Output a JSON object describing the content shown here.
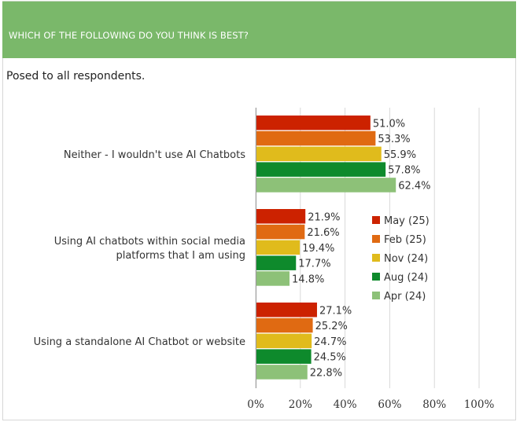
{
  "header": {
    "title": "WHICH OF THE FOLLOWING DO YOU THINK IS BEST?"
  },
  "subtitle": "Posed to all respondents.",
  "chart_data": {
    "type": "bar",
    "orientation": "horizontal",
    "categories": [
      [
        "Neither - I wouldn't use AI Chatbots"
      ],
      [
        "Using AI chatbots within social media",
        "platforms that I am using"
      ],
      [
        "Using a standalone AI Chatbot or website"
      ]
    ],
    "series": [
      {
        "name": "May (25)",
        "color": "#cc2200",
        "values": [
          51.0,
          21.9,
          27.1
        ],
        "labels": [
          "51.0%",
          "21.9%",
          "27.1%"
        ]
      },
      {
        "name": "Feb (25)",
        "color": "#e06a12",
        "values": [
          53.3,
          21.6,
          25.2
        ],
        "labels": [
          "53.3%",
          "21.6%",
          "25.2%"
        ]
      },
      {
        "name": "Nov (24)",
        "color": "#e0bb1c",
        "values": [
          55.9,
          19.4,
          24.7
        ],
        "labels": [
          "55.9%",
          "19.4%",
          "24.7%"
        ]
      },
      {
        "name": "Aug (24)",
        "color": "#0e8a2c",
        "values": [
          57.8,
          17.7,
          24.5
        ],
        "labels": [
          "57.8%",
          "17.7%",
          "24.5%"
        ]
      },
      {
        "name": "Apr (24)",
        "color": "#8dc178",
        "values": [
          62.4,
          14.8,
          22.8
        ],
        "labels": [
          "62.4%",
          "14.8%",
          "22.8%"
        ]
      }
    ],
    "xlim": [
      0,
      100
    ],
    "xticks": [
      "0%",
      "20%",
      "40%",
      "60%",
      "80%",
      "100%"
    ],
    "grid": true,
    "legend_position": "right"
  }
}
